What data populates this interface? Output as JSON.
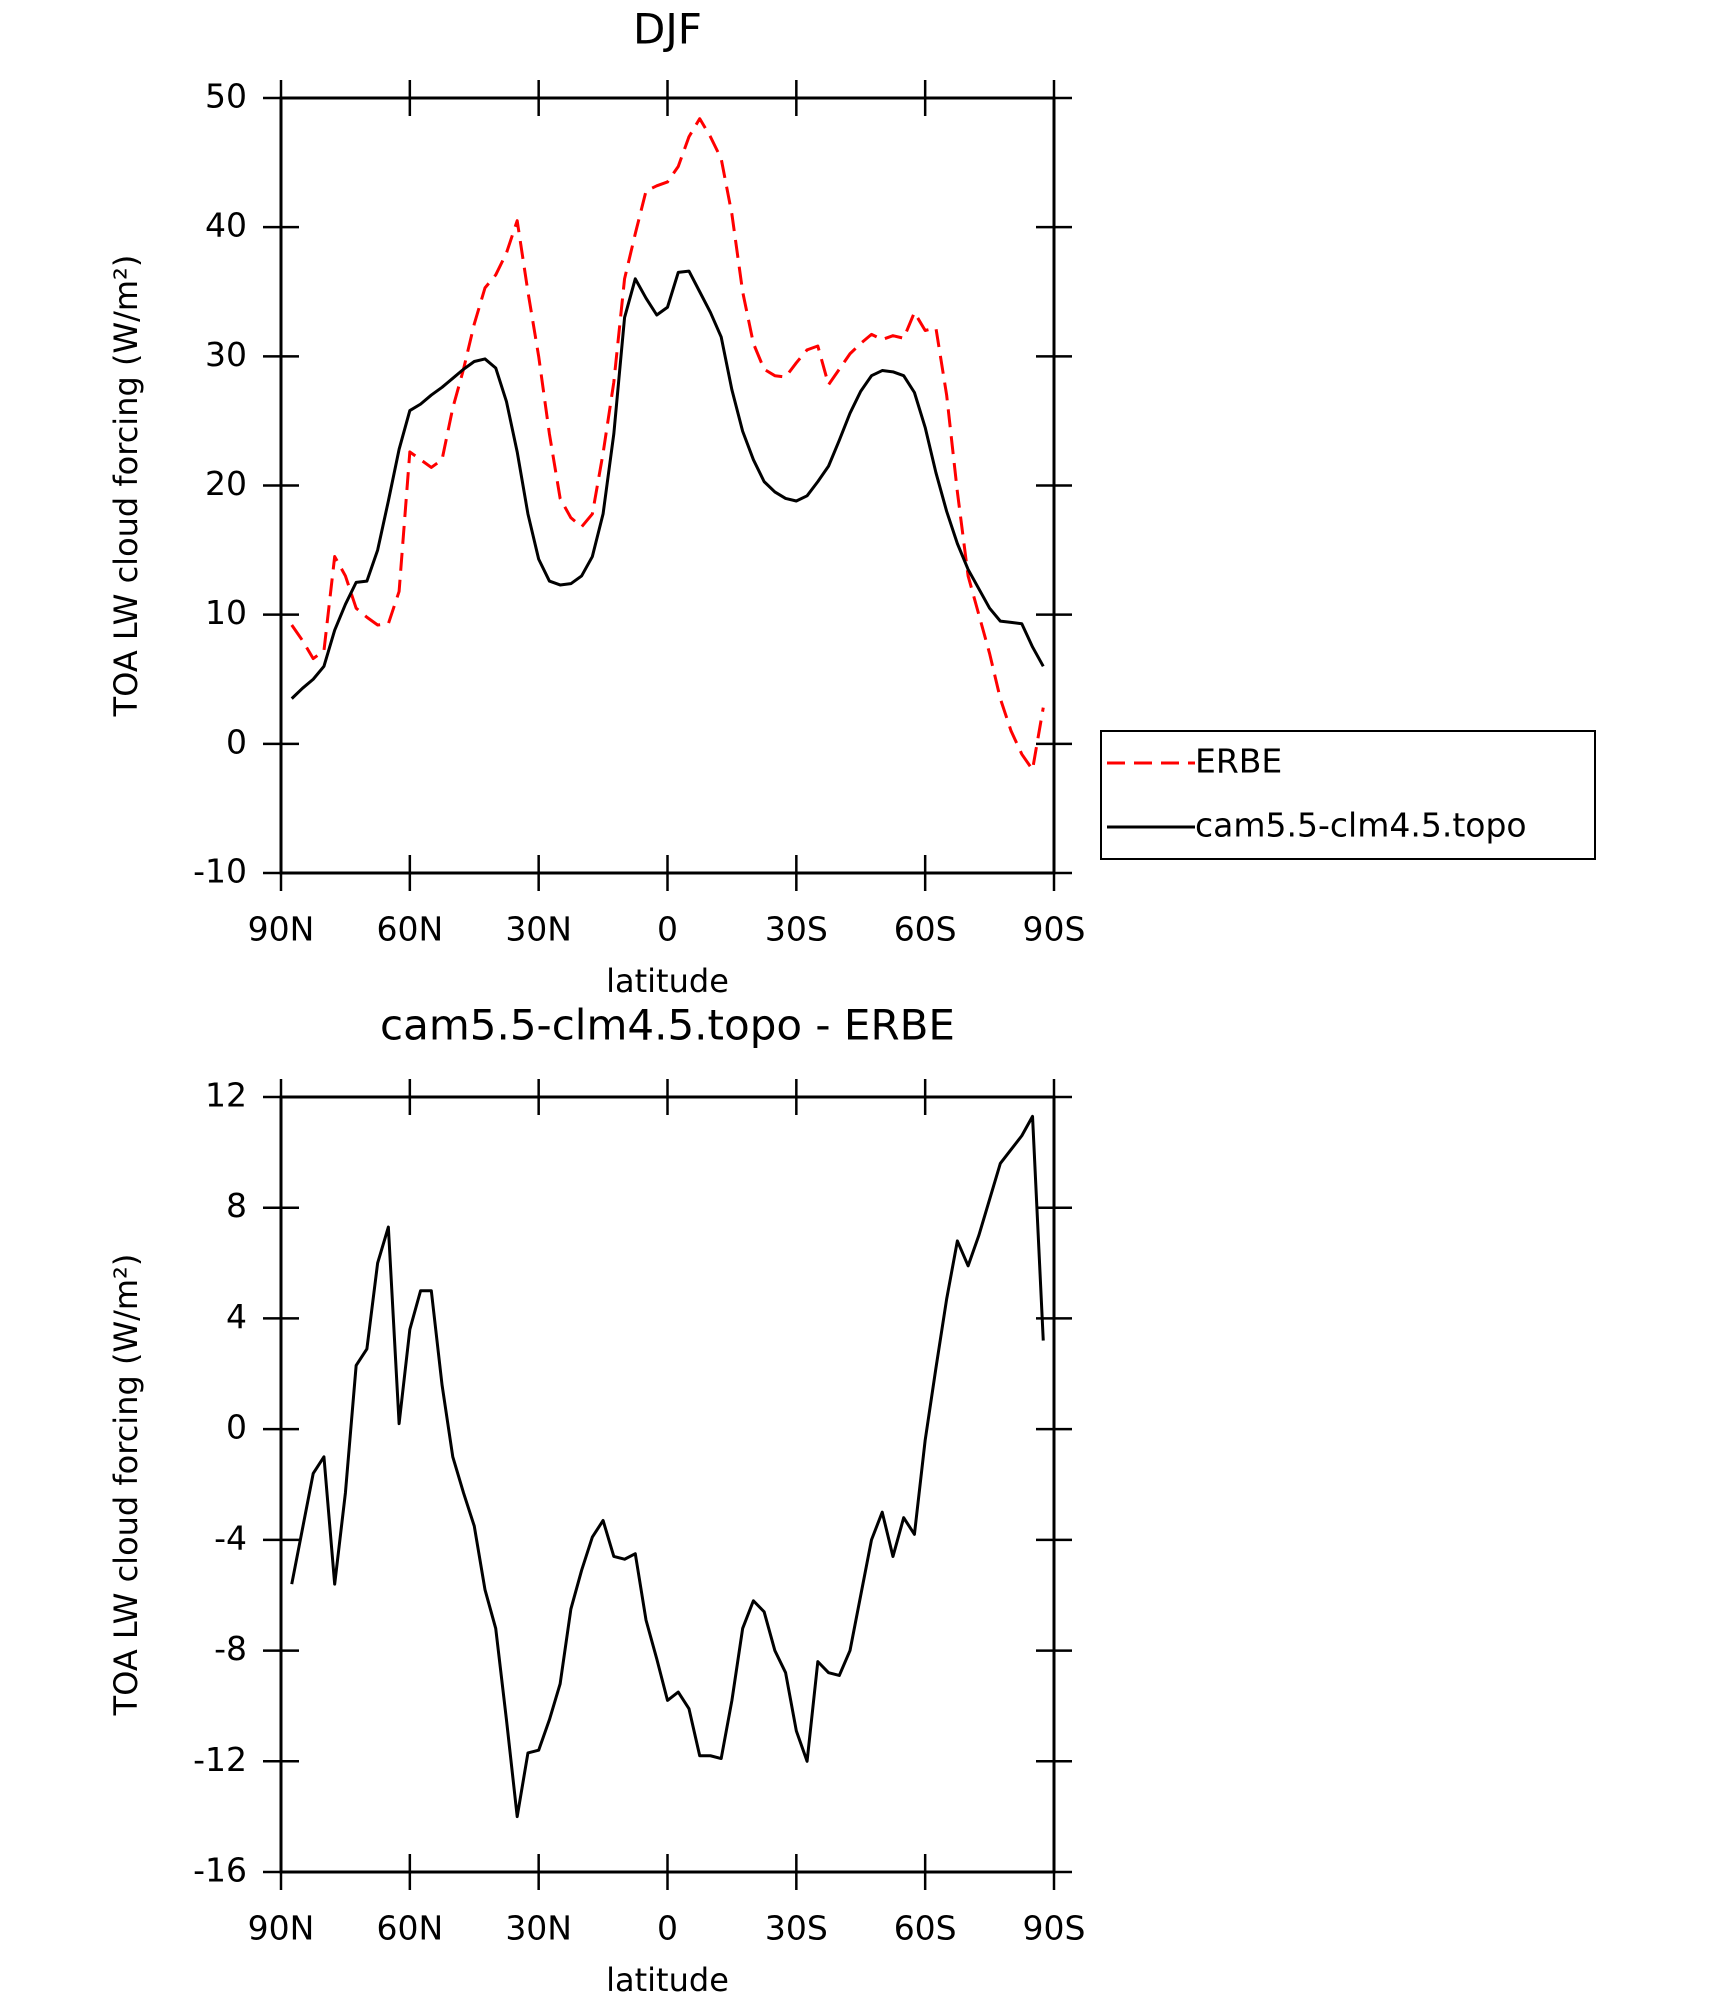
{
  "chart_data": [
    {
      "type": "line",
      "title": "DJF",
      "xlabel": "latitude",
      "ylabel": "TOA LW cloud forcing (W/m²)",
      "x": [
        87.5,
        85,
        82.5,
        80,
        77.5,
        75,
        72.5,
        70,
        67.5,
        65,
        62.5,
        60,
        57.5,
        55,
        52.5,
        50,
        47.5,
        45,
        42.5,
        40,
        37.5,
        35,
        32.5,
        30,
        27.5,
        25,
        22.5,
        20,
        17.5,
        15,
        12.5,
        10,
        7.5,
        5,
        2.5,
        0,
        -2.5,
        -5,
        -7.5,
        -10,
        -12.5,
        -15,
        -17.5,
        -20,
        -22.5,
        -25,
        -27.5,
        -30,
        -32.5,
        -35,
        -37.5,
        -40,
        -42.5,
        -45,
        -47.5,
        -50,
        -52.5,
        -55,
        -57.5,
        -60,
        -62.5,
        -65,
        -67.5,
        -70,
        -72.5,
        -75,
        -77.5,
        -80,
        -82.5,
        -85,
        -87.5
      ],
      "series": [
        {
          "name": "ERBE",
          "color": "#ff0000",
          "style": "dashed",
          "values": [
            9.2,
            8,
            6.6,
            7.2,
            14.5,
            13,
            10.5,
            9.8,
            9.2,
            9.3,
            11.8,
            22.6,
            22,
            21.4,
            22,
            26,
            29,
            32.5,
            35.3,
            36.3,
            38,
            40.5,
            35,
            30,
            24,
            19,
            17.5,
            16.8,
            17.8,
            22.5,
            28,
            36,
            39.5,
            42.8,
            43.2,
            43.5,
            44.7,
            47,
            48.4,
            47,
            45.3,
            41,
            35,
            31,
            29,
            28.5,
            28.4,
            29.5,
            30.5,
            30.8,
            27.8,
            29,
            30.2,
            31,
            31.7,
            31.3,
            31.6,
            31.4,
            33.4,
            32,
            32.2,
            27,
            19.5,
            13,
            10,
            7,
            3.5,
            1,
            -0.8,
            -2,
            2.8
          ]
        },
        {
          "name": "cam5.5-clm4.5.topo",
          "color": "#000000",
          "style": "solid",
          "values": [
            3.5,
            4.3,
            5,
            6,
            8.8,
            10.8,
            12.5,
            12.6,
            15,
            18.8,
            22.8,
            25.8,
            26.3,
            27,
            27.6,
            28.3,
            29,
            29.6,
            29.8,
            29.1,
            26.5,
            22.6,
            17.8,
            14.3,
            12.6,
            12.3,
            12.4,
            13,
            14.5,
            17.8,
            24,
            33,
            36,
            34.5,
            33.2,
            33.8,
            36.5,
            36.6,
            35,
            33.4,
            31.5,
            27.4,
            24.2,
            22,
            20.3,
            19.5,
            19,
            18.8,
            19.2,
            20.3,
            21.5,
            23.5,
            25.6,
            27.3,
            28.5,
            28.9,
            28.8,
            28.5,
            27.2,
            24.5,
            21,
            18,
            15.5,
            13.5,
            12,
            10.5,
            9.5,
            9.4,
            9.3,
            7.5,
            6
          ]
        }
      ],
      "xlim": [
        90,
        -90
      ],
      "xticks": [
        {
          "value": 90,
          "label": "90N"
        },
        {
          "value": 60,
          "label": "60N"
        },
        {
          "value": 30,
          "label": "30N"
        },
        0,
        {
          "value": -30,
          "label": "30S"
        },
        {
          "value": -60,
          "label": "60S"
        },
        {
          "value": -90,
          "label": "90S"
        }
      ],
      "ylim": [
        -10,
        50
      ],
      "yticks": [
        -10,
        0,
        10,
        20,
        30,
        40,
        50
      ],
      "legend": "right"
    },
    {
      "type": "line",
      "title": "cam5.5-clm4.5.topo - ERBE",
      "xlabel": "latitude",
      "ylabel": "TOA LW cloud forcing (W/m²)",
      "x": [
        87.5,
        85,
        82.5,
        80,
        77.5,
        75,
        72.5,
        70,
        67.5,
        65,
        62.5,
        60,
        57.5,
        55,
        52.5,
        50,
        47.5,
        45,
        42.5,
        40,
        37.5,
        35,
        32.5,
        30,
        27.5,
        25,
        22.5,
        20,
        17.5,
        15,
        12.5,
        10,
        7.5,
        5,
        2.5,
        0,
        -2.5,
        -5,
        -7.5,
        -10,
        -12.5,
        -15,
        -17.5,
        -20,
        -22.5,
        -25,
        -27.5,
        -30,
        -32.5,
        -35,
        -37.5,
        -40,
        -42.5,
        -45,
        -47.5,
        -50,
        -52.5,
        -55,
        -57.5,
        -60,
        -62.5,
        -65,
        -67.5,
        -70,
        -72.5,
        -75,
        -77.5,
        -80,
        -82.5,
        -85,
        -87.5
      ],
      "series": [
        {
          "color": "#000000",
          "style": "solid",
          "values": [
            -5.6,
            -3.6,
            -1.6,
            -1,
            -5.6,
            -2.3,
            2.3,
            2.9,
            6,
            7.3,
            0.2,
            3.6,
            5,
            5,
            1.6,
            -1,
            -2.3,
            -3.5,
            -5.8,
            -7.2,
            -10.5,
            -14,
            -11.7,
            -11.6,
            -10.5,
            -9.2,
            -6.5,
            -5.1,
            -3.9,
            -3.3,
            -4.6,
            -4.7,
            -4.5,
            -6.9,
            -8.3,
            -9.8,
            -9.5,
            -10.1,
            -11.8,
            -11.8,
            -11.9,
            -9.8,
            -7.2,
            -6.2,
            -6.6,
            -8,
            -8.8,
            -10.9,
            -12,
            -8.4,
            -8.8,
            -8.9,
            -8,
            -6,
            -4,
            -3,
            -4.6,
            -3.2,
            -3.8,
            -0.4,
            2.2,
            4.7,
            6.8,
            5.9,
            7,
            8.3,
            9.6,
            10.1,
            10.6,
            11.3,
            3.2
          ]
        }
      ],
      "xlim": [
        90,
        -90
      ],
      "xticks": [
        {
          "value": 90,
          "label": "90N"
        },
        {
          "value": 60,
          "label": "60N"
        },
        {
          "value": 30,
          "label": "30N"
        },
        0,
        {
          "value": -30,
          "label": "30S"
        },
        {
          "value": -60,
          "label": "60S"
        },
        {
          "value": -90,
          "label": "90S"
        }
      ],
      "ylim": [
        -16,
        12
      ],
      "yticks": [
        -16,
        -12,
        -8,
        -4,
        0,
        4,
        8,
        12
      ]
    }
  ]
}
